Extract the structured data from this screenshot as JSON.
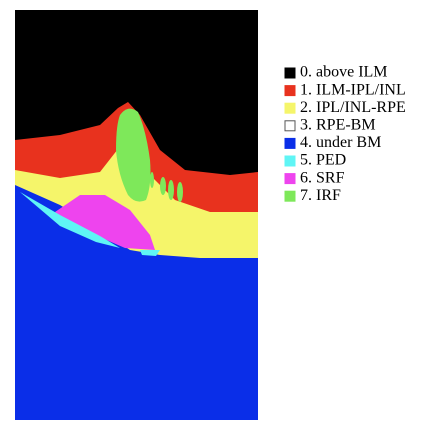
{
  "legend": {
    "items": [
      {
        "label": "0. above ILM",
        "color": "#000000"
      },
      {
        "label": "1. ILM-IPL/INL",
        "color": "#e8321e"
      },
      {
        "label": "2. IPL/INL-RPE",
        "color": "#f5f56a"
      },
      {
        "label": "3. RPE-BM",
        "color": "#ffffff"
      },
      {
        "label": "4. under BM",
        "color": "#0a2ee8"
      },
      {
        "label": "5. PED",
        "color": "#5ff5f5"
      },
      {
        "label": "6. SRF",
        "color": "#ee44ee"
      },
      {
        "label": "7. IRF",
        "color": "#7ee85a"
      }
    ]
  }
}
